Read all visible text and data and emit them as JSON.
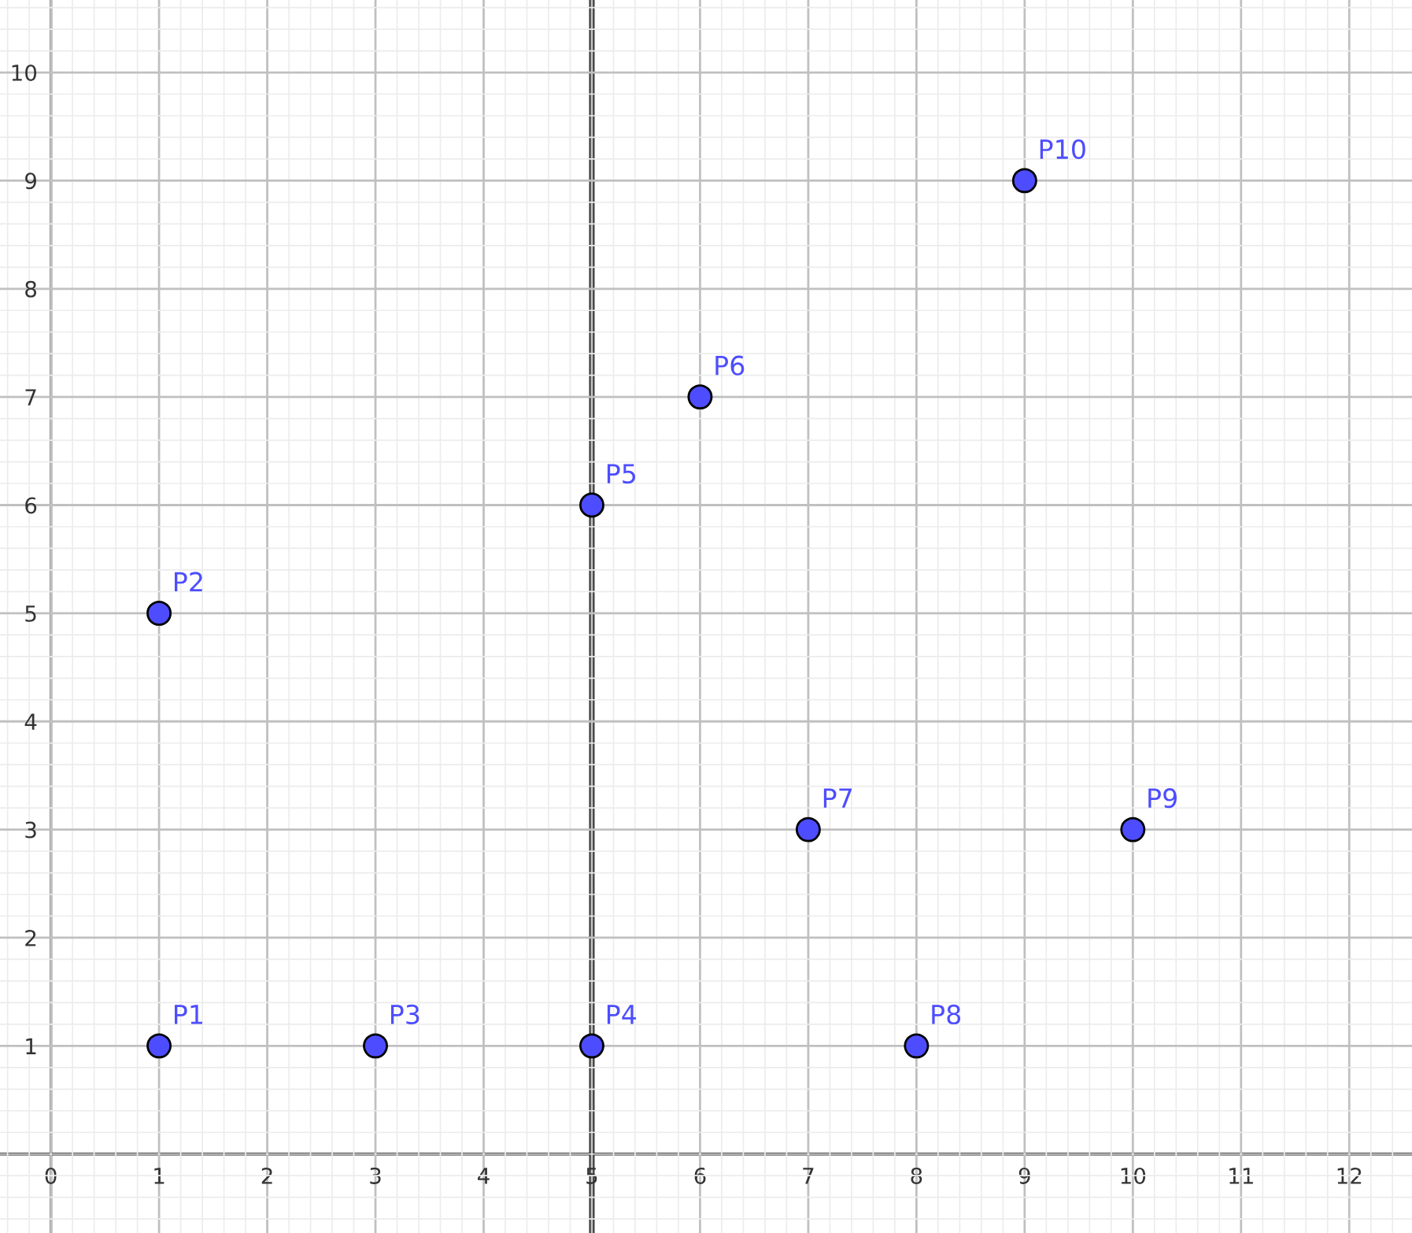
{
  "chart_data": {
    "type": "scatter",
    "x": [
      1,
      1,
      3,
      5,
      5,
      6,
      7,
      8,
      10,
      9
    ],
    "series": [
      {
        "color": "#4d4dff",
        "values": [
          1,
          5,
          1,
          1,
          6,
          7,
          3,
          1,
          3,
          9
        ]
      }
    ],
    "marker": "circle",
    "annotations": [
      {
        "text": "P1",
        "x": 1,
        "y": 1
      },
      {
        "text": "P2",
        "x": 1,
        "y": 5
      },
      {
        "text": "P3",
        "x": 3,
        "y": 1
      },
      {
        "text": "P4",
        "x": 5,
        "y": 1
      },
      {
        "text": "P5",
        "x": 5,
        "y": 6
      },
      {
        "text": "P6",
        "x": 6,
        "y": 7
      },
      {
        "text": "P7",
        "x": 7,
        "y": 3
      },
      {
        "text": "P8",
        "x": 8,
        "y": 1
      },
      {
        "text": "P9",
        "x": 10,
        "y": 3
      },
      {
        "text": "P10",
        "x": 9,
        "y": 9
      }
    ],
    "ref_lines": [
      {
        "axis": "x",
        "value": 5,
        "color": "#333333",
        "line_style": "solid"
      }
    ],
    "xlim": [
      -0.47,
      12.58
    ],
    "ylim": [
      -0.73,
      10.67
    ],
    "xticks": [
      0,
      1,
      2,
      3,
      4,
      5,
      6,
      7,
      8,
      9,
      10,
      11,
      12
    ],
    "yticks": [
      1,
      2,
      3,
      4,
      5,
      6,
      7,
      8,
      9,
      10
    ],
    "grid": true
  }
}
